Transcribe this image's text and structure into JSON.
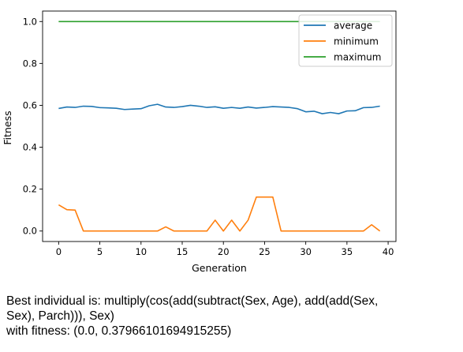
{
  "chart_data": {
    "type": "line",
    "title": "",
    "xlabel": "Generation",
    "ylabel": "Fitness",
    "xlim": [
      -1.95,
      40.95
    ],
    "ylim": [
      -0.05,
      1.05
    ],
    "xticks": [
      0,
      5,
      10,
      15,
      20,
      25,
      30,
      35,
      40
    ],
    "xtick_labels": [
      "0",
      "5",
      "10",
      "15",
      "20",
      "25",
      "30",
      "35",
      "40"
    ],
    "yticks": [
      0.0,
      0.2,
      0.4,
      0.6,
      0.8,
      1.0
    ],
    "ytick_labels": [
      "0.0",
      "0.2",
      "0.4",
      "0.6",
      "0.8",
      "1.0"
    ],
    "grid": false,
    "legend_position": "top-right",
    "x": [
      0,
      1,
      2,
      3,
      4,
      5,
      6,
      7,
      8,
      9,
      10,
      11,
      12,
      13,
      14,
      15,
      16,
      17,
      18,
      19,
      20,
      21,
      22,
      23,
      24,
      25,
      26,
      27,
      28,
      29,
      30,
      31,
      32,
      33,
      34,
      35,
      36,
      37,
      38,
      39
    ],
    "series": [
      {
        "name": "average",
        "color": "#1f77b4",
        "values": [
          0.585,
          0.592,
          0.59,
          0.596,
          0.595,
          0.589,
          0.588,
          0.586,
          0.58,
          0.582,
          0.584,
          0.598,
          0.605,
          0.592,
          0.59,
          0.594,
          0.6,
          0.596,
          0.59,
          0.593,
          0.586,
          0.59,
          0.586,
          0.592,
          0.587,
          0.59,
          0.594,
          0.592,
          0.59,
          0.584,
          0.569,
          0.572,
          0.56,
          0.566,
          0.56,
          0.573,
          0.574,
          0.589,
          0.59,
          0.596
        ]
      },
      {
        "name": "minimum",
        "color": "#ff7f0e",
        "values": [
          0.125,
          0.102,
          0.1,
          0.0,
          0.0,
          0.0,
          0.0,
          0.0,
          0.0,
          0.0,
          0.0,
          0.0,
          0.0,
          0.02,
          0.0,
          0.0,
          0.0,
          0.0,
          0.0,
          0.052,
          0.0,
          0.052,
          0.0,
          0.052,
          0.162,
          0.162,
          0.162,
          0.0,
          0.0,
          0.0,
          0.0,
          0.0,
          0.0,
          0.0,
          0.0,
          0.0,
          0.0,
          0.0,
          0.03,
          0.0
        ]
      },
      {
        "name": "maximum",
        "color": "#2ca02c",
        "values": [
          1.0,
          1.0,
          1.0,
          1.0,
          1.0,
          1.0,
          1.0,
          1.0,
          1.0,
          1.0,
          1.0,
          1.0,
          1.0,
          1.0,
          1.0,
          1.0,
          1.0,
          1.0,
          1.0,
          1.0,
          1.0,
          1.0,
          1.0,
          1.0,
          1.0,
          1.0,
          1.0,
          1.0,
          1.0,
          1.0,
          1.0,
          1.0,
          1.0,
          1.0,
          1.0,
          1.0,
          1.0,
          1.0,
          1.0,
          1.0
        ]
      }
    ]
  },
  "output": {
    "line1": "Best individual is: multiply(cos(add(subtract(Sex, Age), add(add(Sex,",
    "line2": "Sex), Parch))), Sex)",
    "line3": "with fitness: (0.0, 0.37966101694915255)"
  }
}
